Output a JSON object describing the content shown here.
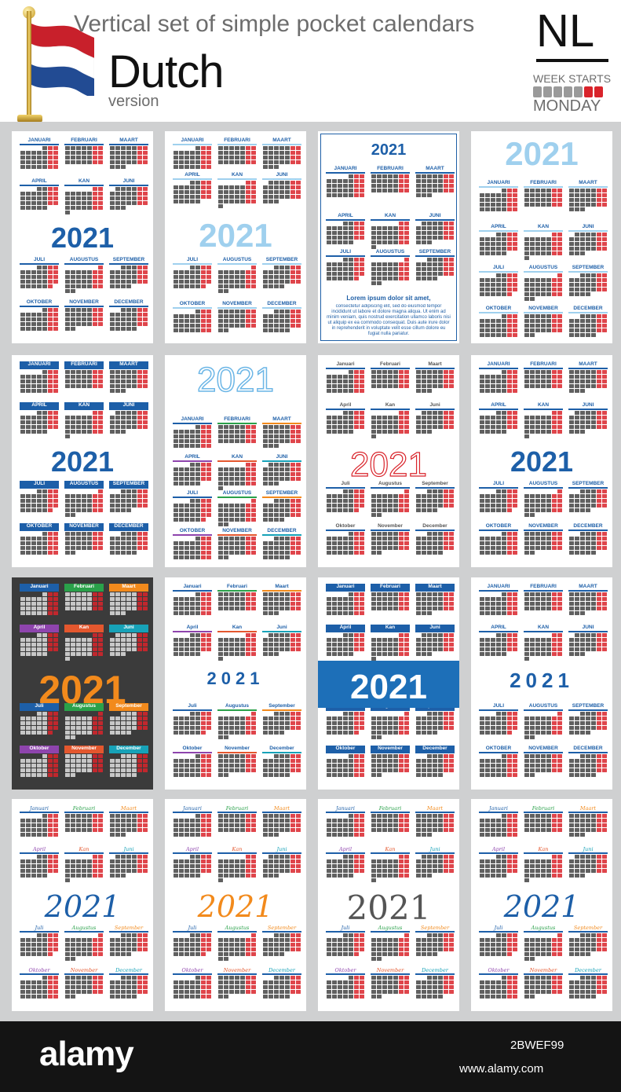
{
  "header": {
    "title_line": "Vertical  set of simple pocket calendars",
    "title_big": "Dutch",
    "title_version": "version",
    "country_code": "NL",
    "week_starts": "WEEK STARTS",
    "week_day": "MONDAY",
    "flag_colors": [
      "#c8202b",
      "#ffffff",
      "#224b93"
    ],
    "week_swatch_colors": [
      "#9a9a9a",
      "#9a9a9a",
      "#9a9a9a",
      "#9a9a9a",
      "#9a9a9a",
      "#d9242b",
      "#d9242b"
    ]
  },
  "year": "2021",
  "months_upper": [
    "JANUARI",
    "FEBRUARI",
    "MAART",
    "APRIL",
    "KAN",
    "JUNI",
    "JULI",
    "AUGUSTUS",
    "SEPTEMBER",
    "OKTOBER",
    "NOVEMBER",
    "DECEMBER"
  ],
  "months_title": [
    "Januari",
    "Februari",
    "Maart",
    "April",
    "Kan",
    "Juni",
    "Juli",
    "Augustus",
    "September",
    "Oktober",
    "November",
    "December"
  ],
  "card_note": {
    "title": "Lorem ipsum dolor sit amet,",
    "text": "consectetur adipiscing elit, sed do eiusmod tempor incididunt ut labore et dolore magna aliqua. Ut enim ad minim veniam, quis nostrud exercitation ullamco laboris nisi ut aliquip ex ea commodo consequat. Duis aute irure dolor in reprehenderit in voluptate velit esse cillum dolore eu fugiat nulla pariatur."
  },
  "cards": [
    {
      "style": "blue-bar",
      "year_color": "#1d5fa8",
      "bg": "#ffffff"
    },
    {
      "style": "light-bar",
      "year_color": "#9fd0ee",
      "bg": "#ffffff"
    },
    {
      "style": "framed",
      "year_color": "#1d5fa8",
      "bg": "#ffffff"
    },
    {
      "style": "light-top",
      "year_color": "#9fd0ee",
      "bg": "#ffffff"
    },
    {
      "style": "blue-solid",
      "year_color": "#1d5fa8",
      "bg": "#ffffff"
    },
    {
      "style": "outline-color",
      "year_color": "#6cb6e6",
      "bg": "#ffffff"
    },
    {
      "style": "outline-red",
      "year_color": "#d9242b",
      "bg": "#ffffff"
    },
    {
      "style": "vertical",
      "year_color": "#1d5fa8",
      "bg": "#ffffff"
    },
    {
      "style": "dark",
      "year_color": "#f28a1c",
      "bg": "#3b3b3b"
    },
    {
      "style": "circles",
      "year_color": "#1d5fa8",
      "bg": "#ffffff"
    },
    {
      "style": "blue-band",
      "year_color": "#ffffff",
      "bg": "#ffffff"
    },
    {
      "style": "dots",
      "year_color": "#1d5fa8",
      "bg": "#ffffff"
    },
    {
      "style": "script",
      "year_color": "#1d5fa8",
      "bg": "#ffffff"
    },
    {
      "style": "script-soft",
      "year_color": "#f28a1c",
      "bg": "#ffffff"
    },
    {
      "style": "script-gray",
      "year_color": "#555555",
      "bg": "#ffffff"
    },
    {
      "style": "script-blue",
      "year_color": "#1d5fa8",
      "bg": "#ffffff"
    }
  ],
  "footer": {
    "logo": "alamy",
    "image_id": "2BWEF99",
    "site": "www.alamy.com"
  }
}
